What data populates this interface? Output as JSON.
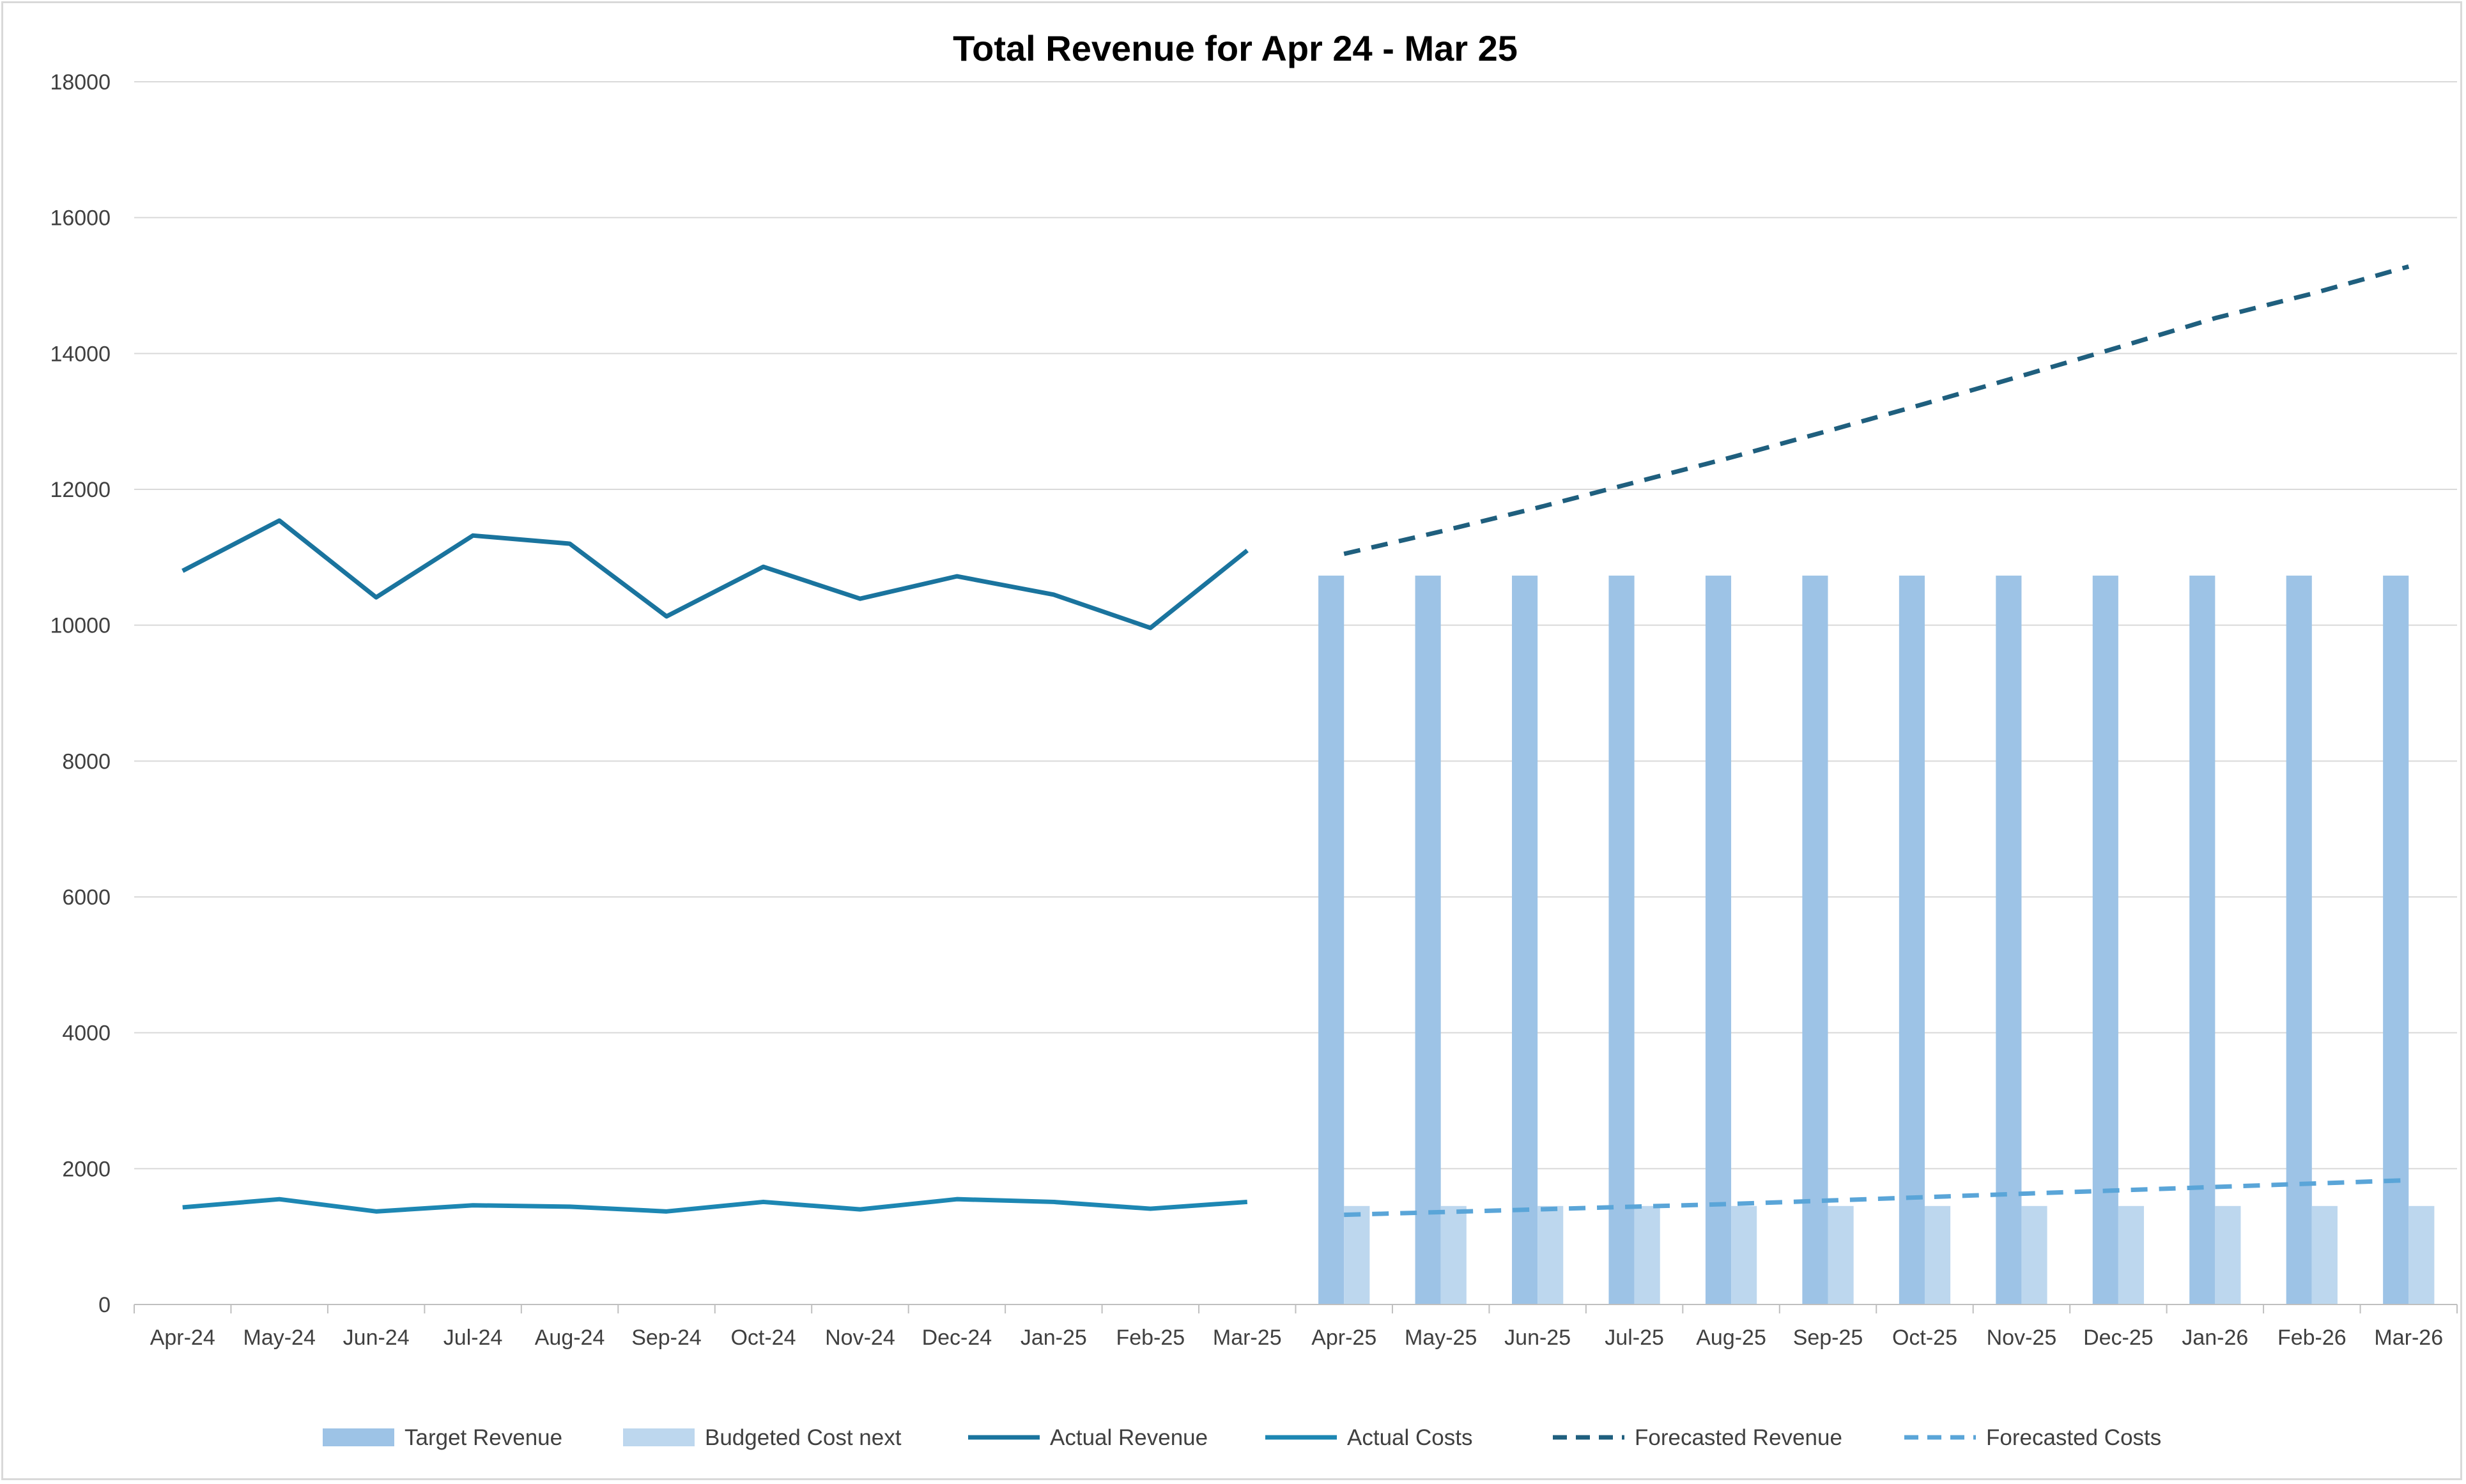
{
  "chart_data": {
    "type": "bar",
    "title": "Total Revenue for Apr 24 - Mar 25",
    "xlabel": "",
    "ylabel": "",
    "ylim": [
      0,
      18000
    ],
    "yticks": [
      0,
      2000,
      4000,
      6000,
      8000,
      10000,
      12000,
      14000,
      16000,
      18000
    ],
    "grid": true,
    "legend_position": "bottom",
    "categories": [
      "Apr-24",
      "May-24",
      "Jun-24",
      "Jul-24",
      "Aug-24",
      "Sep-24",
      "Oct-24",
      "Nov-24",
      "Dec-24",
      "Jan-25",
      "Feb-25",
      "Mar-25",
      "Apr-25",
      "May-25",
      "Jun-25",
      "Jul-25",
      "Aug-25",
      "Sep-25",
      "Oct-25",
      "Nov-25",
      "Dec-25",
      "Jan-26",
      "Feb-26",
      "Mar-26"
    ],
    "series": [
      {
        "name": "Target Revenue",
        "kind": "bar",
        "color": "#9dc3e6",
        "style": "solid",
        "values": [
          null,
          null,
          null,
          null,
          null,
          null,
          null,
          null,
          null,
          null,
          null,
          null,
          10730,
          10730,
          10730,
          10730,
          10730,
          10730,
          10730,
          10730,
          10730,
          10730,
          10730,
          10730
        ]
      },
      {
        "name": "Budgeted Cost next",
        "kind": "bar",
        "color": "#bdd7ee",
        "style": "solid",
        "values": [
          null,
          null,
          null,
          null,
          null,
          null,
          null,
          null,
          null,
          null,
          null,
          null,
          1450,
          1450,
          1450,
          1450,
          1450,
          1450,
          1450,
          1450,
          1450,
          1450,
          1450,
          1450
        ]
      },
      {
        "name": "Actual Revenue",
        "kind": "line",
        "color": "#1a749e",
        "style": "solid",
        "values": [
          10800,
          11540,
          10410,
          11320,
          11200,
          10130,
          10860,
          10390,
          10720,
          10450,
          9960,
          11100,
          null,
          null,
          null,
          null,
          null,
          null,
          null,
          null,
          null,
          null,
          null,
          null
        ]
      },
      {
        "name": "Actual Costs",
        "kind": "line",
        "color": "#1d87b3",
        "style": "solid",
        "values": [
          1430,
          1550,
          1370,
          1460,
          1440,
          1370,
          1510,
          1400,
          1550,
          1510,
          1410,
          1510,
          null,
          null,
          null,
          null,
          null,
          null,
          null,
          null,
          null,
          null,
          null,
          null
        ]
      },
      {
        "name": "Forecasted Revenue",
        "kind": "line",
        "color": "#1f5f7e",
        "style": "dashed",
        "values": [
          null,
          null,
          null,
          null,
          null,
          null,
          null,
          null,
          null,
          null,
          null,
          null,
          11050,
          11380,
          11730,
          12100,
          12470,
          12860,
          13260,
          13670,
          14090,
          14520,
          14880,
          15280
        ]
      },
      {
        "name": "Forecasted Costs",
        "kind": "line",
        "color": "#5aa5d8",
        "style": "dashed",
        "values": [
          null,
          null,
          null,
          null,
          null,
          null,
          null,
          null,
          null,
          null,
          null,
          null,
          1320,
          1360,
          1400,
          1440,
          1480,
          1530,
          1580,
          1630,
          1680,
          1730,
          1780,
          1830
        ]
      }
    ]
  }
}
